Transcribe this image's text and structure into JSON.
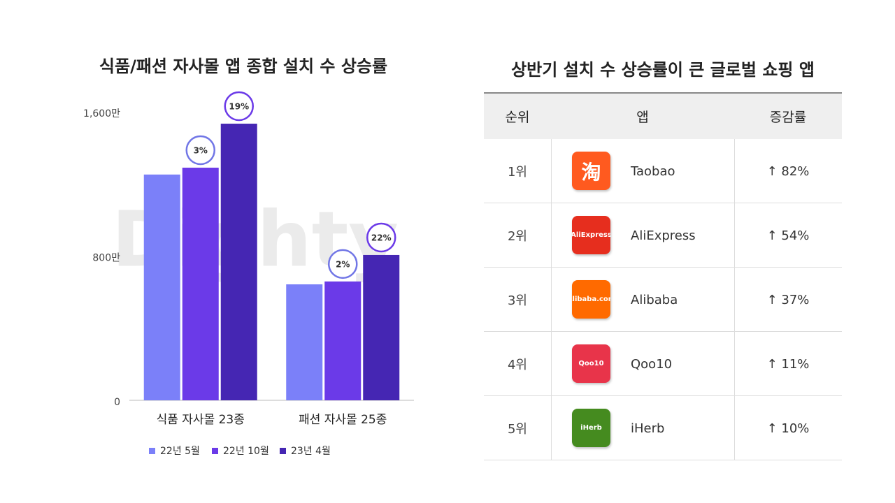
{
  "chart_data": {
    "type": "bar",
    "title": "식품/패션 자사몰 앱 종합 설치 수 상승률",
    "categories": [
      "식품 자사몰 23종",
      "패션 자사몰 25종"
    ],
    "series": [
      {
        "name": "22년 5월",
        "color": "#7b80f9",
        "values": [
          1252,
          643
        ]
      },
      {
        "name": "22년 10월",
        "color": "#6b3ae8",
        "values": [
          1290,
          659
        ],
        "growth": [
          3,
          2
        ],
        "growth_labels": [
          "3%",
          "2%"
        ],
        "badge_color": "#7176e6"
      },
      {
        "name": "23년 4월",
        "color": "#4526b3",
        "values": [
          1534,
          806
        ],
        "growth": [
          19,
          22
        ],
        "growth_labels": [
          "19%",
          "22%"
        ],
        "badge_color": "#6b3ae8"
      }
    ],
    "ylim": [
      0,
      1600
    ],
    "yticks": [
      0,
      {
        "value": 800,
        "label": "800만"
      },
      {
        "value": 1600,
        "label": "1,600만"
      }
    ],
    "watermark": "Dighty"
  },
  "table": {
    "title": "상반기 설치 수 상승률이 큰 글로벌 쇼핑 앱",
    "header": [
      "순위",
      "앱",
      "증감률"
    ],
    "rows": [
      {
        "rank": "1위",
        "icon": "淘",
        "icon_color": "#ff5a1f",
        "app": "Taobao",
        "change": "↑ 82%"
      },
      {
        "rank": "2위",
        "icon": "AliExpress",
        "icon_color": "#e62e1e",
        "app": "AliExpress",
        "change": "↑ 54%"
      },
      {
        "rank": "3위",
        "icon": "Alibaba.com",
        "icon_color": "#ff6a00",
        "app": "Alibaba",
        "change": "↑ 37%"
      },
      {
        "rank": "4위",
        "icon": "Qoo10",
        "icon_color": "#e8344a",
        "app": "Qoo10",
        "change": "↑ 11%"
      },
      {
        "rank": "5위",
        "icon": "iHerb",
        "icon_color": "#458b1f",
        "app": "iHerb",
        "change": "↑ 10%"
      }
    ]
  }
}
